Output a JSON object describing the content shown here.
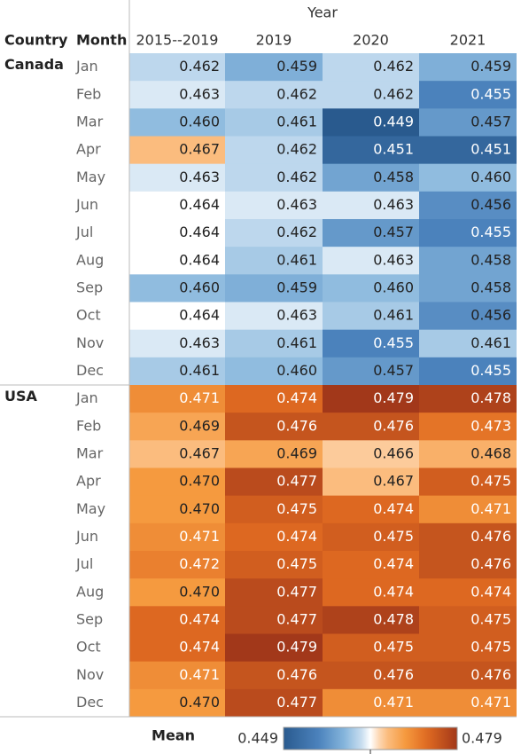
{
  "chart_data": {
    "type": "heatmap",
    "x_title": "Year",
    "row_titles": [
      "Country",
      "Month"
    ],
    "columns": [
      "2015--2019",
      "2019",
      "2020",
      "2021"
    ],
    "groups": [
      {
        "name": "Canada",
        "months": [
          "Jan",
          "Feb",
          "Mar",
          "Apr",
          "May",
          "Jun",
          "Jul",
          "Aug",
          "Sep",
          "Oct",
          "Nov",
          "Dec"
        ],
        "values": [
          [
            0.462,
            0.459,
            0.462,
            0.459
          ],
          [
            0.463,
            0.462,
            0.462,
            0.455
          ],
          [
            0.46,
            0.461,
            0.449,
            0.457
          ],
          [
            0.467,
            0.462,
            0.451,
            0.451
          ],
          [
            0.463,
            0.462,
            0.458,
            0.46
          ],
          [
            0.464,
            0.463,
            0.463,
            0.456
          ],
          [
            0.464,
            0.462,
            0.457,
            0.455
          ],
          [
            0.464,
            0.461,
            0.463,
            0.458
          ],
          [
            0.46,
            0.459,
            0.46,
            0.458
          ],
          [
            0.464,
            0.463,
            0.461,
            0.456
          ],
          [
            0.463,
            0.461,
            0.455,
            0.461
          ],
          [
            0.461,
            0.46,
            0.457,
            0.455
          ]
        ],
        "value_labels": [
          [
            "0.462",
            "0.459",
            "0.462",
            "0.459"
          ],
          [
            "0.463",
            "0.462",
            "0.462",
            "0.455"
          ],
          [
            "0.460",
            "0.461",
            "0.449",
            "0.457"
          ],
          [
            "0.467",
            "0.462",
            "0.451",
            "0.451"
          ],
          [
            "0.463",
            "0.462",
            "0.458",
            "0.460"
          ],
          [
            "0.464",
            "0.463",
            "0.463",
            "0.456"
          ],
          [
            "0.464",
            "0.462",
            "0.457",
            "0.455"
          ],
          [
            "0.464",
            "0.461",
            "0.463",
            "0.458"
          ],
          [
            "0.460",
            "0.459",
            "0.460",
            "0.458"
          ],
          [
            "0.464",
            "0.463",
            "0.461",
            "0.456"
          ],
          [
            "0.463",
            "0.461",
            "0.455",
            "0.461"
          ],
          [
            "0.461",
            "0.460",
            "0.457",
            "0.455"
          ]
        ]
      },
      {
        "name": "USA",
        "months": [
          "Jan",
          "Feb",
          "Mar",
          "Apr",
          "May",
          "Jun",
          "Jul",
          "Aug",
          "Sep",
          "Oct",
          "Nov",
          "Dec"
        ],
        "values": [
          [
            0.471,
            0.474,
            0.479,
            0.478
          ],
          [
            0.469,
            0.476,
            0.476,
            0.473
          ],
          [
            0.467,
            0.469,
            0.466,
            0.468
          ],
          [
            0.47,
            0.477,
            0.467,
            0.475
          ],
          [
            0.47,
            0.475,
            0.474,
            0.471
          ],
          [
            0.471,
            0.474,
            0.475,
            0.476
          ],
          [
            0.472,
            0.475,
            0.474,
            0.476
          ],
          [
            0.47,
            0.477,
            0.474,
            0.474
          ],
          [
            0.474,
            0.477,
            0.478,
            0.475
          ],
          [
            0.474,
            0.479,
            0.475,
            0.475
          ],
          [
            0.471,
            0.476,
            0.476,
            0.476
          ],
          [
            0.47,
            0.477,
            0.471,
            0.471
          ]
        ],
        "value_labels": [
          [
            "0.471",
            "0.474",
            "0.479",
            "0.478"
          ],
          [
            "0.469",
            "0.476",
            "0.476",
            "0.473"
          ],
          [
            "0.467",
            "0.469",
            "0.466",
            "0.468"
          ],
          [
            "0.470",
            "0.477",
            "0.467",
            "0.475"
          ],
          [
            "0.470",
            "0.475",
            "0.474",
            "0.471"
          ],
          [
            "0.471",
            "0.474",
            "0.475",
            "0.476"
          ],
          [
            "0.472",
            "0.475",
            "0.474",
            "0.476"
          ],
          [
            "0.470",
            "0.477",
            "0.474",
            "0.474"
          ],
          [
            "0.474",
            "0.477",
            "0.478",
            "0.475"
          ],
          [
            "0.474",
            "0.479",
            "0.475",
            "0.475"
          ],
          [
            "0.471",
            "0.476",
            "0.476",
            "0.476"
          ],
          [
            "0.470",
            "0.477",
            "0.471",
            "0.471"
          ]
        ]
      }
    ],
    "legend_title": "Mean",
    "colorlim": [
      0.449,
      0.479
    ]
  }
}
